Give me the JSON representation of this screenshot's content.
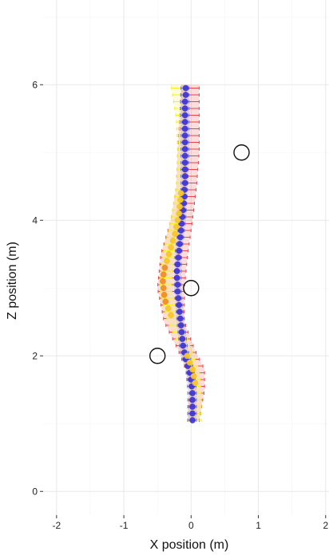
{
  "chart_data": {
    "type": "scatter",
    "xlabel": "X position (m)",
    "ylabel": "Z position (m)",
    "xlim": [
      -2.2,
      2.05
    ],
    "ylim": [
      -0.35,
      7.25
    ],
    "x_ticks": [
      -2,
      -1,
      0,
      1,
      2
    ],
    "y_ticks": [
      0,
      2,
      4,
      6
    ],
    "x_tick_labels": [
      "-2",
      "-1",
      "0",
      "1",
      "2"
    ],
    "y_tick_labels": [
      "0",
      "2",
      "4",
      "6"
    ],
    "grid": true,
    "legend": "none",
    "colors": {
      "panel": "#ffffff",
      "grid_major": "#e8e8e8",
      "grid_minor": "#f4f4f4",
      "red_band": "#e8454a",
      "yellow_band": "#f2ee2a",
      "blue_band": "#6b78c8",
      "blue_points": "#3c2fd1",
      "yellow_points": "#f7c51f",
      "orange_points": "#f08a1c",
      "obstacle_stroke": "#111111"
    },
    "obstacles": [
      {
        "x": -0.5,
        "z": 2.0
      },
      {
        "x": 0.0,
        "z": 3.0
      },
      {
        "x": 0.75,
        "z": 5.0
      }
    ],
    "series": [
      {
        "color_key": "blue_points",
        "values": [
          {
            "z": 1.05,
            "x": 0.02
          },
          {
            "z": 1.15,
            "x": 0.02
          },
          {
            "z": 1.25,
            "x": 0.02
          },
          {
            "z": 1.35,
            "x": 0.02
          },
          {
            "z": 1.45,
            "x": 0.02
          },
          {
            "z": 1.55,
            "x": 0.01
          },
          {
            "z": 1.65,
            "x": 0.0
          },
          {
            "z": 1.75,
            "x": -0.02
          },
          {
            "z": 1.85,
            "x": -0.05
          },
          {
            "z": 1.95,
            "x": -0.08
          },
          {
            "z": 2.05,
            "x": -0.1
          },
          {
            "z": 2.15,
            "x": -0.12
          },
          {
            "z": 2.25,
            "x": -0.13
          },
          {
            "z": 2.35,
            "x": -0.14
          },
          {
            "z": 2.45,
            "x": -0.15
          },
          {
            "z": 2.55,
            "x": -0.16
          },
          {
            "z": 2.65,
            "x": -0.17
          },
          {
            "z": 2.75,
            "x": -0.18
          },
          {
            "z": 2.85,
            "x": -0.19
          },
          {
            "z": 2.95,
            "x": -0.2
          },
          {
            "z": 3.05,
            "x": -0.2
          },
          {
            "z": 3.15,
            "x": -0.21
          },
          {
            "z": 3.25,
            "x": -0.21
          },
          {
            "z": 3.35,
            "x": -0.2
          },
          {
            "z": 3.45,
            "x": -0.19
          },
          {
            "z": 3.55,
            "x": -0.18
          },
          {
            "z": 3.65,
            "x": -0.17
          },
          {
            "z": 3.75,
            "x": -0.16
          },
          {
            "z": 3.85,
            "x": -0.15
          },
          {
            "z": 3.95,
            "x": -0.14
          },
          {
            "z": 4.05,
            "x": -0.13
          },
          {
            "z": 4.15,
            "x": -0.12
          },
          {
            "z": 4.25,
            "x": -0.11
          },
          {
            "z": 4.35,
            "x": -0.1
          },
          {
            "z": 4.45,
            "x": -0.1
          },
          {
            "z": 4.55,
            "x": -0.09
          },
          {
            "z": 4.65,
            "x": -0.09
          },
          {
            "z": 4.75,
            "x": -0.09
          },
          {
            "z": 4.85,
            "x": -0.09
          },
          {
            "z": 4.95,
            "x": -0.09
          },
          {
            "z": 5.05,
            "x": -0.09
          },
          {
            "z": 5.15,
            "x": -0.09
          },
          {
            "z": 5.25,
            "x": -0.09
          },
          {
            "z": 5.35,
            "x": -0.09
          },
          {
            "z": 5.45,
            "x": -0.09
          },
          {
            "z": 5.55,
            "x": -0.09
          },
          {
            "z": 5.65,
            "x": -0.09
          },
          {
            "z": 5.75,
            "x": -0.09
          },
          {
            "z": 5.85,
            "x": -0.08
          },
          {
            "z": 5.95,
            "x": -0.08
          }
        ]
      },
      {
        "color_key": "yellow_points",
        "values": [
          {
            "z": 1.6,
            "x": 0.06
          },
          {
            "z": 1.7,
            "x": 0.04
          },
          {
            "z": 1.8,
            "x": 0.02
          },
          {
            "z": 1.9,
            "x": -0.02
          },
          {
            "z": 2.0,
            "x": -0.06
          },
          {
            "z": 2.6,
            "x": -0.3
          },
          {
            "z": 2.7,
            "x": -0.34
          },
          {
            "z": 3.4,
            "x": -0.36
          },
          {
            "z": 3.5,
            "x": -0.33
          },
          {
            "z": 3.6,
            "x": -0.3
          },
          {
            "z": 3.7,
            "x": -0.27
          },
          {
            "z": 3.8,
            "x": -0.24
          },
          {
            "z": 3.9,
            "x": -0.22
          },
          {
            "z": 4.0,
            "x": -0.2
          },
          {
            "z": 4.1,
            "x": -0.18
          },
          {
            "z": 4.2,
            "x": -0.17
          },
          {
            "z": 4.3,
            "x": -0.16
          },
          {
            "z": 4.4,
            "x": -0.15
          }
        ]
      },
      {
        "color_key": "orange_points",
        "values": [
          {
            "z": 2.8,
            "x": -0.38
          },
          {
            "z": 2.9,
            "x": -0.4
          },
          {
            "z": 3.0,
            "x": -0.41
          },
          {
            "z": 3.1,
            "x": -0.42
          },
          {
            "z": 3.2,
            "x": -0.41
          },
          {
            "z": 3.3,
            "x": -0.39
          }
        ]
      }
    ],
    "bands": [
      {
        "color_key": "red_band",
        "points": [
          {
            "z": 1.05,
            "lo": -0.05,
            "hi": 0.12
          },
          {
            "z": 1.5,
            "lo": -0.02,
            "hi": 0.2
          },
          {
            "z": 1.8,
            "lo": -0.08,
            "hi": 0.2
          },
          {
            "z": 2.1,
            "lo": -0.2,
            "hi": 0.05
          },
          {
            "z": 2.5,
            "lo": -0.4,
            "hi": -0.1
          },
          {
            "z": 3.0,
            "lo": -0.5,
            "hi": -0.1
          },
          {
            "z": 3.5,
            "lo": -0.45,
            "hi": -0.05
          },
          {
            "z": 4.0,
            "lo": -0.3,
            "hi": 0.02
          },
          {
            "z": 4.5,
            "lo": -0.22,
            "hi": 0.08
          },
          {
            "z": 5.0,
            "lo": -0.2,
            "hi": 0.12
          },
          {
            "z": 5.5,
            "lo": -0.17,
            "hi": 0.12
          },
          {
            "z": 6.0,
            "lo": -0.15,
            "hi": 0.12
          }
        ]
      },
      {
        "color_key": "yellow_band",
        "points": [
          {
            "z": 1.05,
            "lo": -0.03,
            "hi": 0.15
          },
          {
            "z": 1.5,
            "lo": 0.0,
            "hi": 0.15
          },
          {
            "z": 1.8,
            "lo": -0.05,
            "hi": 0.12
          },
          {
            "z": 2.1,
            "lo": -0.15,
            "hi": 0.0
          },
          {
            "z": 2.5,
            "lo": -0.35,
            "hi": -0.15
          },
          {
            "z": 3.0,
            "lo": -0.47,
            "hi": -0.3
          },
          {
            "z": 3.5,
            "lo": -0.42,
            "hi": -0.25
          },
          {
            "z": 4.0,
            "lo": -0.3,
            "hi": -0.12
          },
          {
            "z": 4.5,
            "lo": -0.22,
            "hi": -0.05
          },
          {
            "z": 5.0,
            "lo": -0.2,
            "hi": -0.05
          },
          {
            "z": 5.5,
            "lo": -0.22,
            "hi": -0.08
          },
          {
            "z": 6.0,
            "lo": -0.3,
            "hi": -0.1
          }
        ]
      },
      {
        "color_key": "blue_band",
        "points": [
          {
            "z": 1.05,
            "lo": -0.05,
            "hi": 0.08
          },
          {
            "z": 1.5,
            "lo": -0.05,
            "hi": 0.08
          },
          {
            "z": 1.8,
            "lo": -0.08,
            "hi": 0.04
          },
          {
            "z": 2.1,
            "lo": -0.17,
            "hi": -0.05
          },
          {
            "z": 2.5,
            "lo": -0.21,
            "hi": -0.1
          },
          {
            "z": 3.0,
            "lo": -0.25,
            "hi": -0.15
          },
          {
            "z": 3.5,
            "lo": -0.24,
            "hi": -0.14
          },
          {
            "z": 4.0,
            "lo": -0.18,
            "hi": -0.08
          },
          {
            "z": 4.5,
            "lo": -0.15,
            "hi": -0.05
          },
          {
            "z": 5.0,
            "lo": -0.15,
            "hi": -0.03
          },
          {
            "z": 5.5,
            "lo": -0.15,
            "hi": -0.03
          },
          {
            "z": 6.0,
            "lo": -0.15,
            "hi": -0.03
          }
        ]
      }
    ]
  }
}
